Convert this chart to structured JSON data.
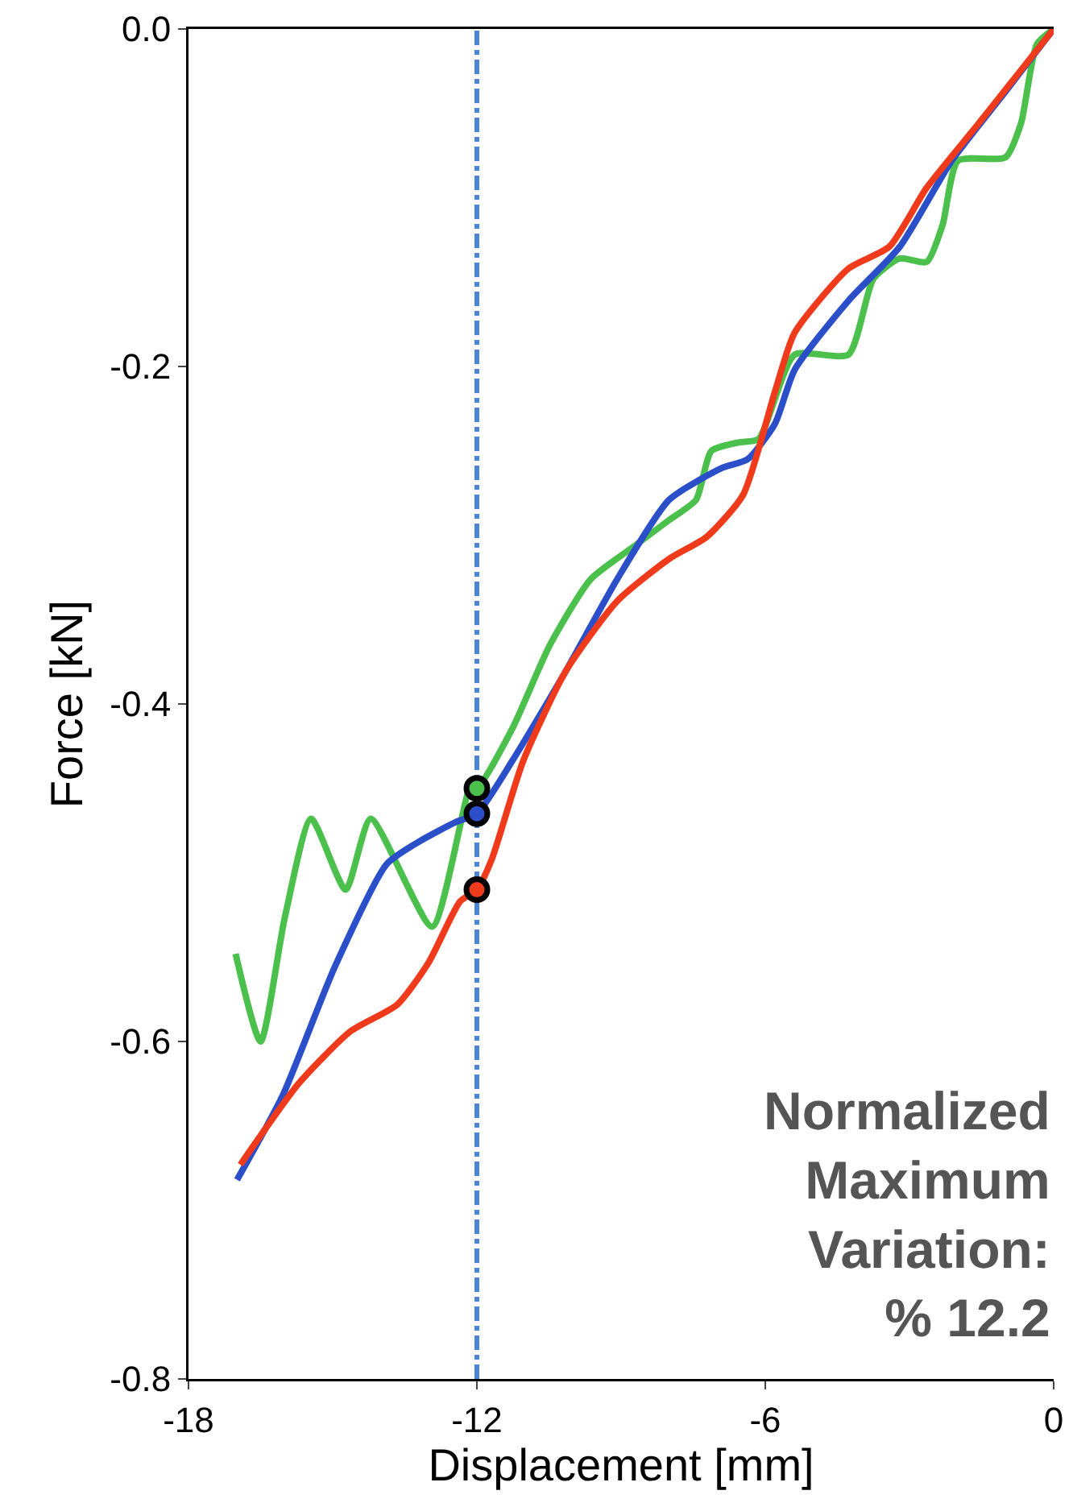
{
  "chart_data": {
    "type": "line",
    "xlabel": "Displacement [mm]",
    "ylabel": "Force [kN]",
    "xlim": [
      -18,
      0
    ],
    "xticks": [
      -18,
      -12,
      -6,
      0
    ],
    "ylim": [
      -0.8,
      0
    ],
    "yticks": [
      {
        "value": -0.8,
        "label": "-0.8"
      },
      {
        "value": -0.6,
        "label": "-0.6"
      },
      {
        "value": -0.4,
        "label": "-0.4"
      },
      {
        "value": -0.2,
        "label": "-0.2"
      },
      {
        "value": 0,
        "label": "0.0"
      }
    ],
    "grid": false,
    "marker": "none",
    "line_style": "solid",
    "series": [
      {
        "color": "#4cc04c",
        "x": [
          -17.02,
          -16.5,
          -16.0,
          -15.45,
          -14.73,
          -14.21,
          -12.93,
          -12.12,
          -12,
          -11.27,
          -10.48,
          -9.63,
          -8.75,
          -8.0,
          -7.44,
          -7.12,
          -6.56,
          -6.14,
          -5.39,
          -4.27,
          -3.75,
          -3.2,
          -2.64,
          -2.31,
          -1.99,
          -1.0,
          -0.68,
          -0.35,
          0
        ],
        "values": [
          -0.548,
          -0.6,
          -0.527,
          -0.468,
          -0.51,
          -0.468,
          -0.532,
          -0.448,
          -0.45,
          -0.415,
          -0.365,
          -0.326,
          -0.307,
          -0.291,
          -0.279,
          -0.25,
          -0.245,
          -0.243,
          -0.193,
          -0.193,
          -0.148,
          -0.136,
          -0.138,
          -0.116,
          -0.078,
          -0.076,
          -0.056,
          -0.009,
          0
        ]
      },
      {
        "color": "#2a4fc8",
        "x": [
          -16.99,
          -16.04,
          -14.96,
          -13.88,
          -13.23,
          -12.44,
          -12,
          -11.27,
          -10.16,
          -9.08,
          -8.0,
          -6.89,
          -6.37,
          -5.8,
          -5.39,
          -4.27,
          -3.2,
          -2.12,
          -1.0,
          0
        ],
        "values": [
          -0.682,
          -0.632,
          -0.556,
          -0.495,
          -0.482,
          -0.47,
          -0.465,
          -0.434,
          -0.381,
          -0.326,
          -0.279,
          -0.26,
          -0.255,
          -0.234,
          -0.202,
          -0.161,
          -0.129,
          -0.078,
          -0.037,
          0
        ]
      },
      {
        "color": "#f03a1c",
        "x": [
          -16.92,
          -15.71,
          -14.63,
          -13.65,
          -13.0,
          -12.35,
          -12,
          -11.69,
          -11.04,
          -10.16,
          -9.08,
          -8.0,
          -7.22,
          -6.46,
          -5.8,
          -5.39,
          -4.27,
          -3.42,
          -2.64,
          -1.56,
          0
        ],
        "values": [
          -0.673,
          -0.625,
          -0.594,
          -0.578,
          -0.553,
          -0.517,
          -0.51,
          -0.492,
          -0.434,
          -0.381,
          -0.339,
          -0.314,
          -0.301,
          -0.276,
          -0.215,
          -0.18,
          -0.142,
          -0.129,
          -0.094,
          -0.056,
          0
        ]
      },
      {
        "type": "scatter",
        "marker": "circle",
        "color": "#4cc04c",
        "x": [
          -12
        ],
        "values": [
          -0.45
        ]
      },
      {
        "type": "scatter",
        "marker": "circle",
        "color": "#2a4fc8",
        "x": [
          -12
        ],
        "values": [
          -0.465
        ]
      },
      {
        "type": "scatter",
        "marker": "circle",
        "color": "#f03a1c",
        "x": [
          -12
        ],
        "values": [
          -0.51
        ]
      }
    ],
    "ref_lines": [
      {
        "axis": "x",
        "value": -12,
        "color": "#4a86d8",
        "line_style": "dashdot"
      }
    ],
    "annotations": [
      "Normalized Maximum Variation: % 12.2"
    ]
  }
}
